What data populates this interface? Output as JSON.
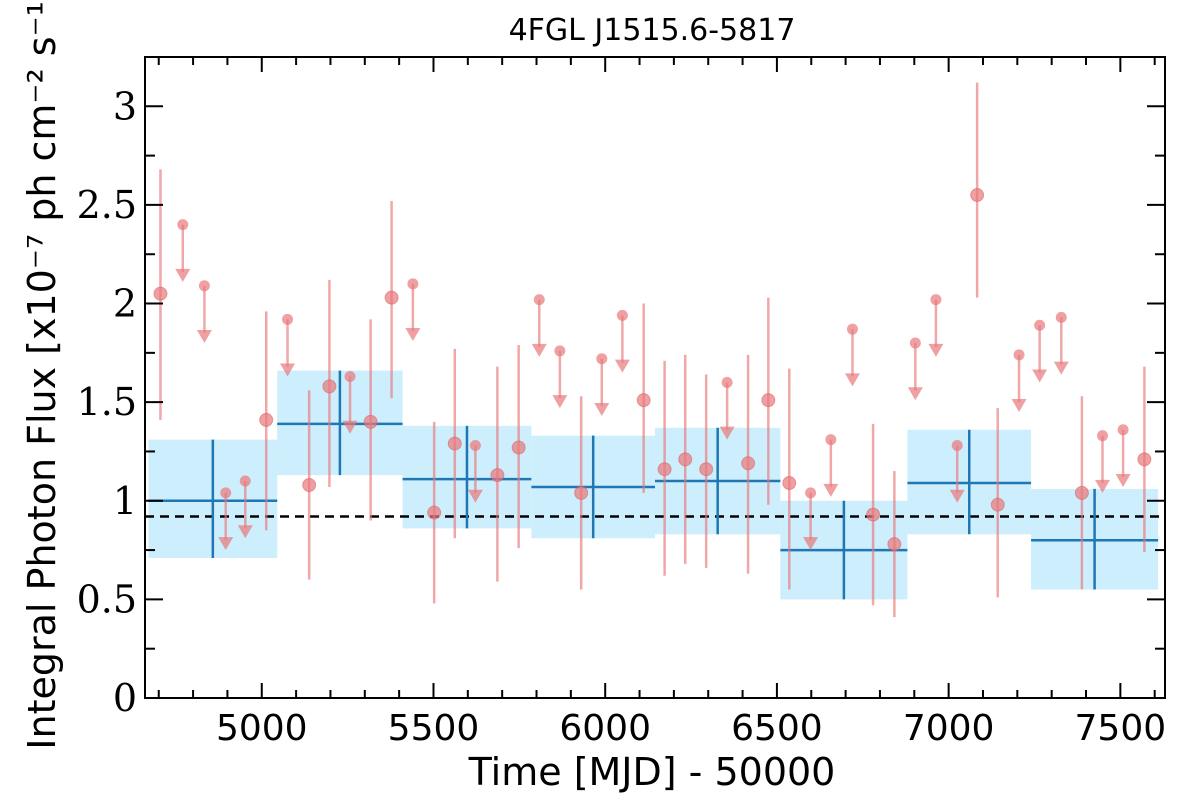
{
  "chart_data": {
    "type": "scatter",
    "title": "4FGL J1515.6-5817",
    "xlabel": "Time [MJD] - 50000",
    "ylabel": "Integral Photon Flux [x10⁻⁷ ph cm⁻² s⁻¹]",
    "xlim": [
      4660,
      7630
    ],
    "ylim": [
      0,
      3.25
    ],
    "xticks": [
      5000,
      5500,
      6000,
      6500,
      7000,
      7500
    ],
    "xtick_labels": [
      "5000",
      "5500",
      "6000",
      "6500",
      "7000",
      "7500"
    ],
    "yticks": [
      0,
      0.5,
      1,
      1.5,
      2,
      2.5,
      3
    ],
    "ytick_labels": [
      "0",
      "0.5",
      "1",
      "1.5",
      "2",
      "2.5",
      "3"
    ],
    "mean_flux": 0.92,
    "colors": {
      "points": "#e8787a",
      "bins_line": "#1f77b4",
      "bins_fill": "#cdeefc",
      "mean_line": "#000000"
    },
    "series": [
      {
        "kind": "detections",
        "points": [
          {
            "x": 4705,
            "y": 2.05,
            "yerr": [
              1.41,
              2.68
            ]
          },
          {
            "x": 5013,
            "y": 1.41,
            "yerr": [
              0.85,
              1.96
            ]
          },
          {
            "x": 5138,
            "y": 1.08,
            "yerr": [
              0.6,
              1.56
            ]
          },
          {
            "x": 5197,
            "y": 1.58,
            "yerr": [
              1.07,
              2.12
            ]
          },
          {
            "x": 5317,
            "y": 1.4,
            "yerr": [
              0.9,
              1.92
            ]
          },
          {
            "x": 5378,
            "y": 2.03,
            "yerr": [
              1.52,
              2.52
            ]
          },
          {
            "x": 5502,
            "y": 0.94,
            "yerr": [
              0.48,
              1.4
            ]
          },
          {
            "x": 5562,
            "y": 1.29,
            "yerr": [
              0.81,
              1.77
            ]
          },
          {
            "x": 5686,
            "y": 1.13,
            "yerr": [
              0.59,
              1.68
            ]
          },
          {
            "x": 5748,
            "y": 1.27,
            "yerr": [
              0.76,
              1.79
            ]
          },
          {
            "x": 5930,
            "y": 1.04,
            "yerr": [
              0.55,
              1.53
            ]
          },
          {
            "x": 6112,
            "y": 1.51,
            "yerr": [
              1.04,
              2.0
            ]
          },
          {
            "x": 6173,
            "y": 1.16,
            "yerr": [
              0.62,
              1.71
            ]
          },
          {
            "x": 6233,
            "y": 1.21,
            "yerr": [
              0.68,
              1.74
            ]
          },
          {
            "x": 6294,
            "y": 1.16,
            "yerr": [
              0.66,
              1.64
            ]
          },
          {
            "x": 6416,
            "y": 1.19,
            "yerr": [
              0.63,
              1.74
            ]
          },
          {
            "x": 6475,
            "y": 1.51,
            "yerr": [
              0.98,
              2.03
            ]
          },
          {
            "x": 6536,
            "y": 1.09,
            "yerr": [
              0.55,
              1.67
            ]
          },
          {
            "x": 6780,
            "y": 0.93,
            "yerr": [
              0.47,
              1.39
            ]
          },
          {
            "x": 6842,
            "y": 0.78,
            "yerr": [
              0.41,
              1.15
            ]
          },
          {
            "x": 7083,
            "y": 2.55,
            "yerr": [
              2.03,
              3.12
            ]
          },
          {
            "x": 7143,
            "y": 0.98,
            "yerr": [
              0.51,
              1.47
            ]
          },
          {
            "x": 7388,
            "y": 1.04,
            "yerr": [
              0.55,
              1.53
            ]
          },
          {
            "x": 7570,
            "y": 1.21,
            "yerr": [
              0.74,
              1.68
            ]
          }
        ]
      },
      {
        "kind": "upper_limits",
        "points": [
          {
            "x": 4770,
            "y": 2.4
          },
          {
            "x": 4833,
            "y": 2.09
          },
          {
            "x": 4895,
            "y": 1.04
          },
          {
            "x": 4952,
            "y": 1.1
          },
          {
            "x": 5075,
            "y": 1.92
          },
          {
            "x": 5257,
            "y": 1.63
          },
          {
            "x": 5440,
            "y": 2.1
          },
          {
            "x": 5622,
            "y": 1.28
          },
          {
            "x": 5808,
            "y": 2.02
          },
          {
            "x": 5868,
            "y": 1.76
          },
          {
            "x": 5990,
            "y": 1.72
          },
          {
            "x": 6050,
            "y": 1.94
          },
          {
            "x": 6355,
            "y": 1.6
          },
          {
            "x": 6598,
            "y": 1.04
          },
          {
            "x": 6657,
            "y": 1.31
          },
          {
            "x": 6720,
            "y": 1.87
          },
          {
            "x": 6903,
            "y": 1.8
          },
          {
            "x": 6963,
            "y": 2.02
          },
          {
            "x": 7025,
            "y": 1.28
          },
          {
            "x": 7205,
            "y": 1.74
          },
          {
            "x": 7265,
            "y": 1.89
          },
          {
            "x": 7328,
            "y": 1.93
          },
          {
            "x": 7448,
            "y": 1.33
          },
          {
            "x": 7508,
            "y": 1.36
          }
        ]
      },
      {
        "kind": "bins",
        "bins": [
          {
            "x0": 4670,
            "x1": 5045,
            "y": 1.0,
            "ylo": 0.71,
            "yhi": 1.31
          },
          {
            "x0": 5045,
            "x1": 5410,
            "y": 1.39,
            "ylo": 1.13,
            "yhi": 1.66
          },
          {
            "x0": 5410,
            "x1": 5785,
            "y": 1.11,
            "ylo": 0.86,
            "yhi": 1.38
          },
          {
            "x0": 5785,
            "x1": 6145,
            "y": 1.07,
            "ylo": 0.81,
            "yhi": 1.33
          },
          {
            "x0": 6145,
            "x1": 6510,
            "y": 1.1,
            "ylo": 0.83,
            "yhi": 1.37
          },
          {
            "x0": 6510,
            "x1": 6880,
            "y": 0.75,
            "ylo": 0.5,
            "yhi": 1.0
          },
          {
            "x0": 6880,
            "x1": 7240,
            "y": 1.09,
            "ylo": 0.83,
            "yhi": 1.36
          },
          {
            "x0": 7240,
            "x1": 7610,
            "y": 0.8,
            "ylo": 0.55,
            "yhi": 1.06
          }
        ]
      }
    ]
  }
}
